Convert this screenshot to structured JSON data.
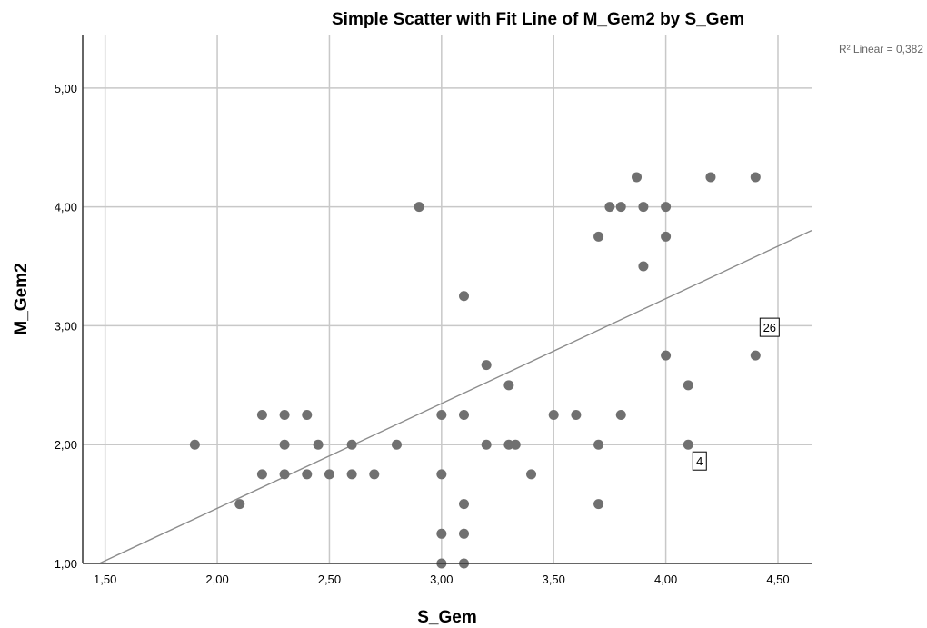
{
  "chart_data": {
    "type": "scatter",
    "title": "Simple Scatter with Fit Line of M_Gem2 by S_Gem",
    "xlabel": "S_Gem",
    "ylabel": "M_Gem2",
    "r2_text": "R² Linear = 0,382",
    "xlim": [
      1.4,
      4.65
    ],
    "ylim": [
      1.0,
      5.45
    ],
    "x_ticks": [
      1.5,
      2.0,
      2.5,
      3.0,
      3.5,
      4.0,
      4.5
    ],
    "x_tick_labels": [
      "1,50",
      "2,00",
      "2,50",
      "3,00",
      "3,50",
      "4,00",
      "4,50"
    ],
    "y_ticks": [
      1.0,
      2.0,
      3.0,
      4.0,
      5.0
    ],
    "y_tick_labels": [
      "1,00",
      "2,00",
      "3,00",
      "4,00",
      "5,00"
    ],
    "grid": true,
    "fit_line": {
      "slope": 0.882,
      "intercept": -0.3
    },
    "points": [
      {
        "x": 1.9,
        "y": 2.0
      },
      {
        "x": 2.1,
        "y": 1.5
      },
      {
        "x": 2.2,
        "y": 2.25
      },
      {
        "x": 2.2,
        "y": 1.75
      },
      {
        "x": 2.3,
        "y": 2.25
      },
      {
        "x": 2.3,
        "y": 2.0
      },
      {
        "x": 2.3,
        "y": 1.75
      },
      {
        "x": 2.4,
        "y": 2.25
      },
      {
        "x": 2.4,
        "y": 1.75
      },
      {
        "x": 2.45,
        "y": 2.0
      },
      {
        "x": 2.5,
        "y": 1.75
      },
      {
        "x": 2.6,
        "y": 2.0
      },
      {
        "x": 2.6,
        "y": 1.75
      },
      {
        "x": 2.7,
        "y": 1.75
      },
      {
        "x": 2.8,
        "y": 2.0
      },
      {
        "x": 2.9,
        "y": 4.0
      },
      {
        "x": 3.0,
        "y": 2.25
      },
      {
        "x": 3.0,
        "y": 1.75
      },
      {
        "x": 3.0,
        "y": 1.25
      },
      {
        "x": 3.0,
        "y": 1.0
      },
      {
        "x": 3.1,
        "y": 3.25
      },
      {
        "x": 3.1,
        "y": 2.25
      },
      {
        "x": 3.1,
        "y": 1.5
      },
      {
        "x": 3.1,
        "y": 1.25
      },
      {
        "x": 3.1,
        "y": 1.0
      },
      {
        "x": 3.2,
        "y": 2.67
      },
      {
        "x": 3.2,
        "y": 2.0
      },
      {
        "x": 3.3,
        "y": 2.5
      },
      {
        "x": 3.3,
        "y": 2.0
      },
      {
        "x": 3.33,
        "y": 2.0
      },
      {
        "x": 3.4,
        "y": 1.75
      },
      {
        "x": 3.5,
        "y": 2.25
      },
      {
        "x": 3.6,
        "y": 2.25
      },
      {
        "x": 3.7,
        "y": 3.75
      },
      {
        "x": 3.7,
        "y": 2.0
      },
      {
        "x": 3.7,
        "y": 1.5
      },
      {
        "x": 3.75,
        "y": 4.0
      },
      {
        "x": 3.8,
        "y": 4.0
      },
      {
        "x": 3.8,
        "y": 2.25
      },
      {
        "x": 3.87,
        "y": 4.25
      },
      {
        "x": 3.9,
        "y": 4.0
      },
      {
        "x": 3.9,
        "y": 3.5
      },
      {
        "x": 4.0,
        "y": 4.0
      },
      {
        "x": 4.0,
        "y": 3.75
      },
      {
        "x": 4.0,
        "y": 2.75
      },
      {
        "x": 4.1,
        "y": 2.5
      },
      {
        "x": 4.1,
        "y": 2.0
      },
      {
        "x": 4.2,
        "y": 4.25
      },
      {
        "x": 4.4,
        "y": 4.25
      },
      {
        "x": 4.4,
        "y": 2.75
      }
    ],
    "annotations": [
      {
        "text": "26",
        "x": 4.4,
        "y": 2.75
      },
      {
        "text": "4",
        "x": 4.1,
        "y": 2.0
      }
    ]
  }
}
